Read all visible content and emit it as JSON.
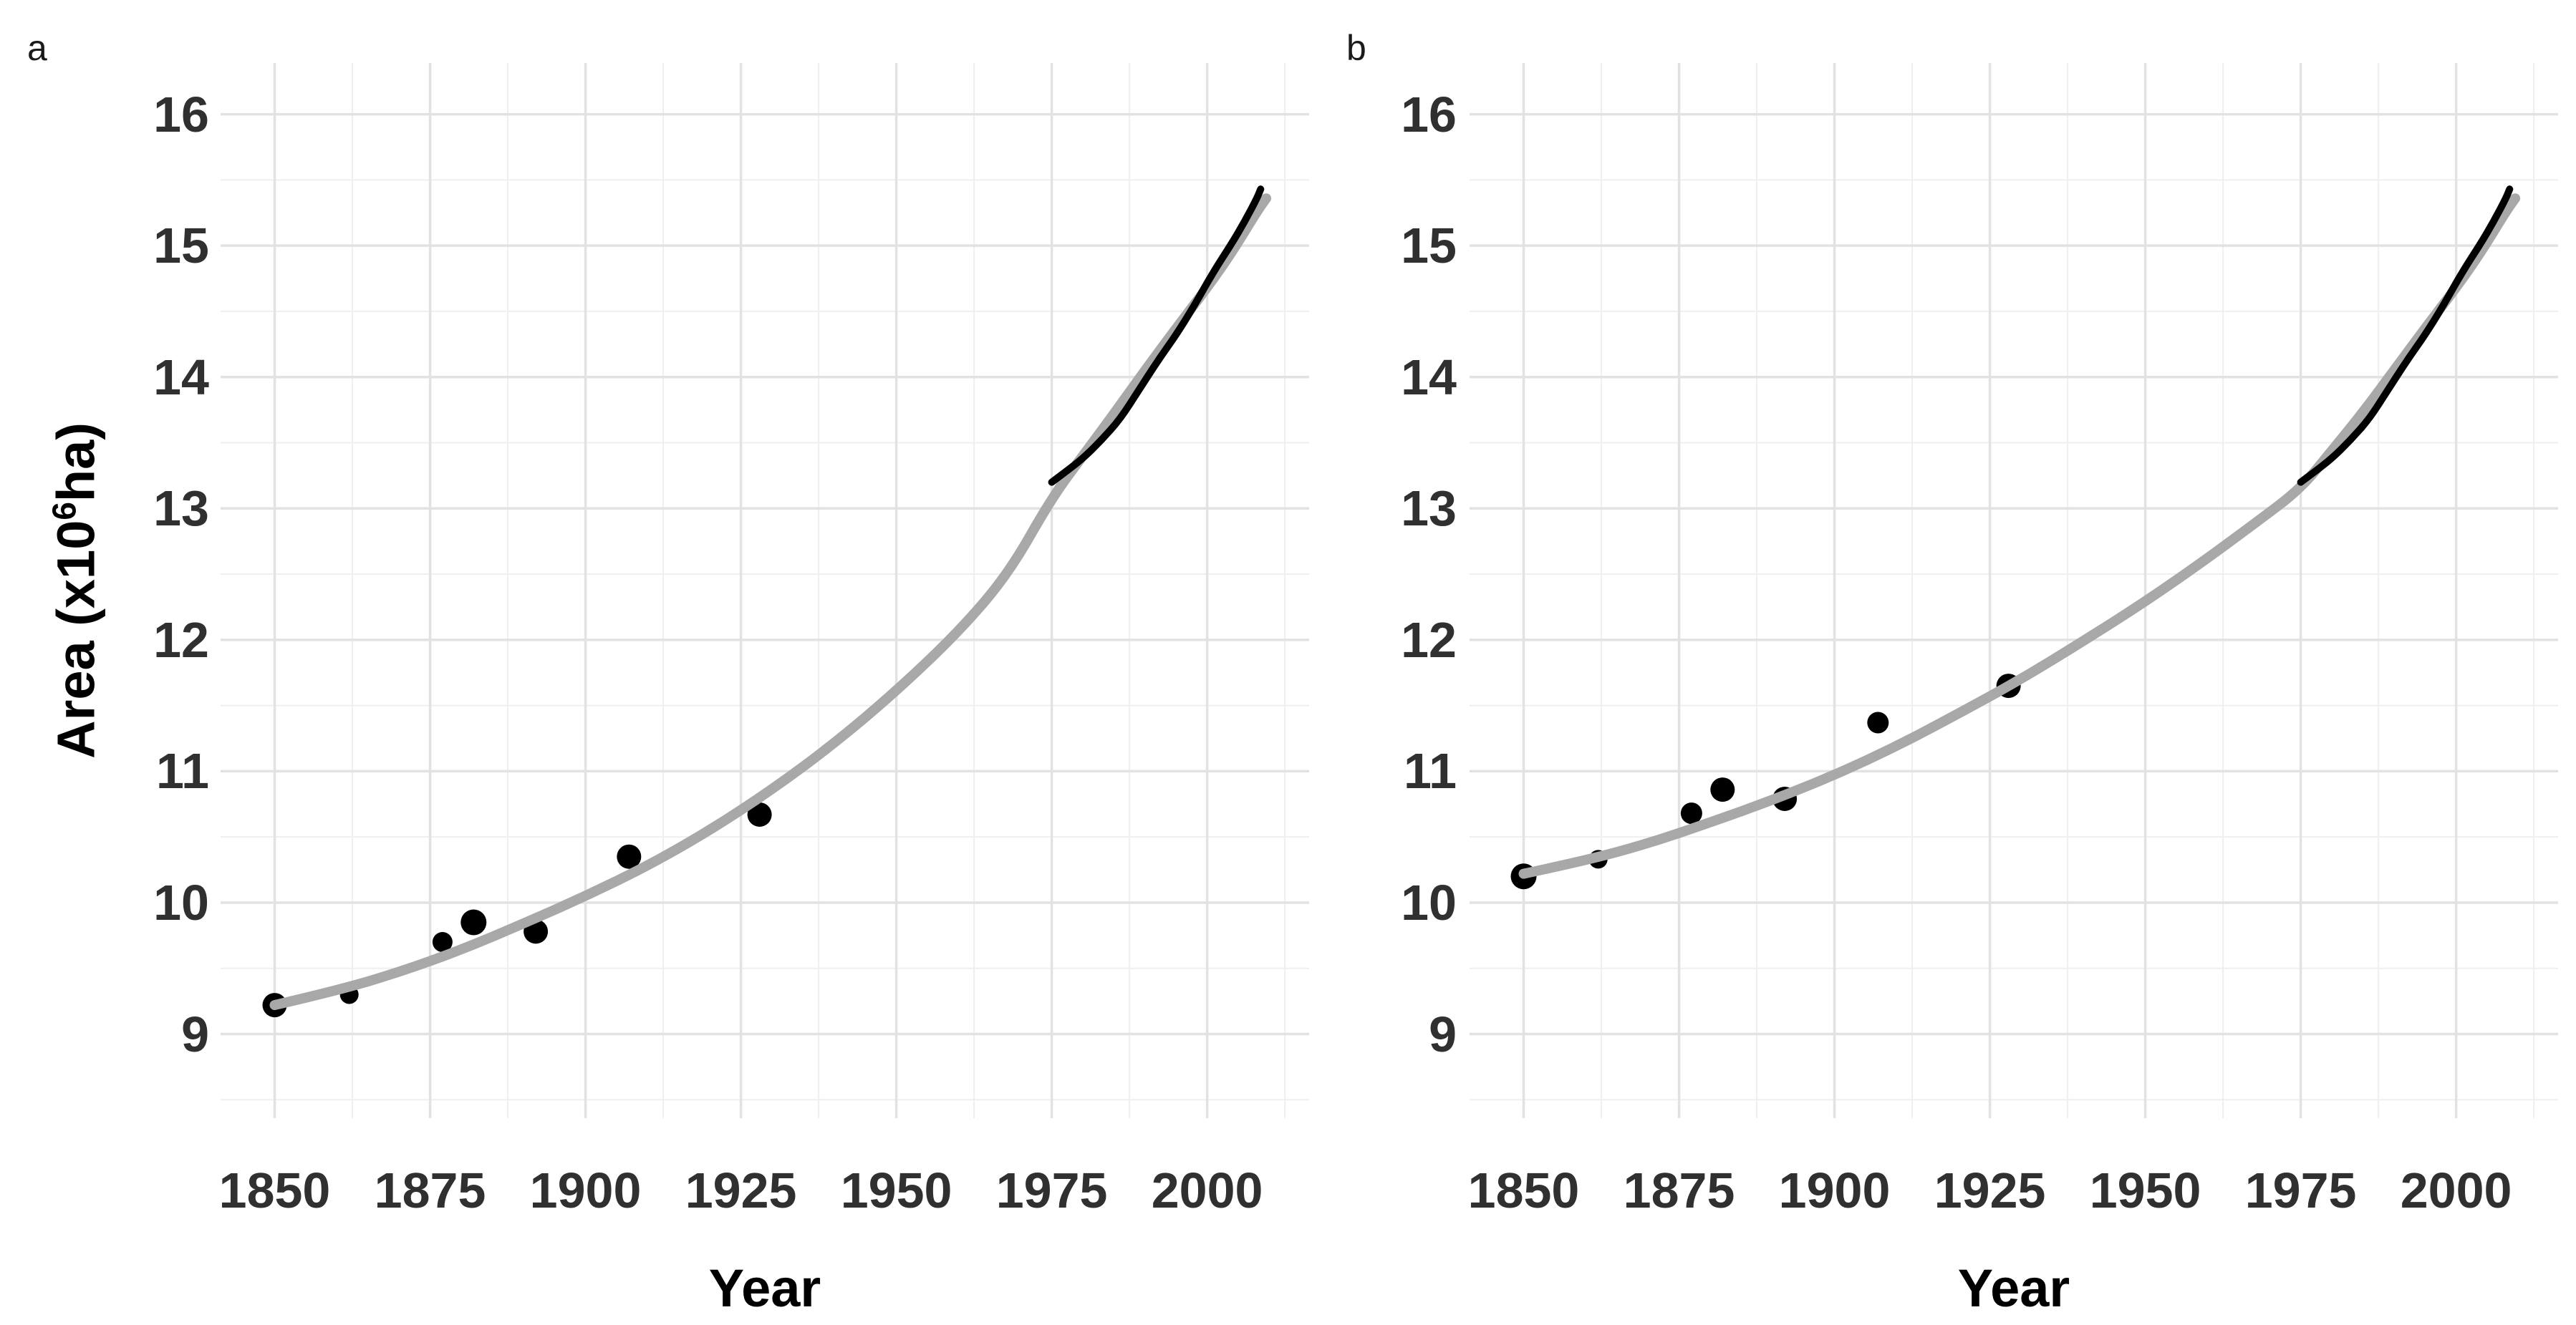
{
  "figure": {
    "panel_tags": [
      "a",
      "b"
    ]
  },
  "chart_data": {
    "type": "scatter",
    "title": "",
    "xlabel": "Year",
    "ylabel": "Area (x10^6 ha)",
    "ylabel_parts": [
      "Area (x10",
      "6",
      "ha)"
    ],
    "axes": {
      "x_domain": [
        1841.3,
        2016.4
      ],
      "y_domain": [
        8.36,
        16.39
      ],
      "x_ticks": [
        1850,
        1875,
        1900,
        1925,
        1950,
        1975,
        2000
      ],
      "x_minor_ticks": [
        1862.5,
        1887.5,
        1912.5,
        1937.5,
        1962.5,
        1987.5,
        2012.5
      ],
      "y_ticks": [
        9,
        10,
        11,
        12,
        13,
        14,
        15,
        16
      ],
      "y_minor_ticks": [
        8.5,
        9.5,
        10.5,
        11.5,
        12.5,
        13.5,
        14.5,
        15.5
      ],
      "grid": true,
      "legend": false
    },
    "panels": [
      {
        "tag": "a",
        "has_y_axis_title": true,
        "points": [
          [
            1850,
            9.22,
            17
          ],
          [
            1862,
            9.3,
            13
          ],
          [
            1877,
            9.7,
            14
          ],
          [
            1882,
            9.85,
            18
          ],
          [
            1892,
            9.78,
            17
          ],
          [
            1907,
            10.35,
            17
          ],
          [
            1928,
            10.67,
            17
          ]
        ],
        "smooth": [
          [
            1850,
            9.22
          ],
          [
            1860,
            9.33
          ],
          [
            1870,
            9.47
          ],
          [
            1880,
            9.64
          ],
          [
            1890,
            9.84
          ],
          [
            1900,
            10.05
          ],
          [
            1910,
            10.28
          ],
          [
            1920,
            10.55
          ],
          [
            1930,
            10.86
          ],
          [
            1940,
            11.21
          ],
          [
            1950,
            11.61
          ],
          [
            1960,
            12.06
          ],
          [
            1968,
            12.5
          ],
          [
            1975,
            13.08
          ],
          [
            1980,
            13.4
          ],
          [
            1985,
            13.72
          ],
          [
            1990,
            14.05
          ],
          [
            1995,
            14.37
          ],
          [
            2000,
            14.68
          ],
          [
            2004,
            14.95
          ],
          [
            2008,
            15.26
          ],
          [
            2009.5,
            15.36
          ]
        ]
      },
      {
        "tag": "b",
        "has_y_axis_title": false,
        "points": [
          [
            1850,
            10.2,
            18
          ],
          [
            1862,
            10.33,
            13
          ],
          [
            1877,
            10.68,
            15
          ],
          [
            1882,
            10.86,
            17
          ],
          [
            1892,
            10.79,
            17
          ],
          [
            1907,
            11.37,
            15
          ],
          [
            1928,
            11.65,
            17
          ]
        ],
        "smooth": [
          [
            1850,
            10.22
          ],
          [
            1860,
            10.32
          ],
          [
            1870,
            10.45
          ],
          [
            1880,
            10.61
          ],
          [
            1890,
            10.78
          ],
          [
            1900,
            10.97
          ],
          [
            1910,
            11.19
          ],
          [
            1920,
            11.44
          ],
          [
            1930,
            11.7
          ],
          [
            1940,
            11.99
          ],
          [
            1950,
            12.29
          ],
          [
            1960,
            12.62
          ],
          [
            1968,
            12.9
          ],
          [
            1975,
            13.15
          ],
          [
            1980,
            13.44
          ],
          [
            1985,
            13.73
          ],
          [
            1990,
            14.05
          ],
          [
            1995,
            14.37
          ],
          [
            2000,
            14.68
          ],
          [
            2004,
            14.95
          ],
          [
            2008,
            15.26
          ],
          [
            2009.5,
            15.36
          ]
        ]
      }
    ],
    "observed_line": [
      [
        1975,
        13.2
      ],
      [
        1977,
        13.27
      ],
      [
        1980,
        13.38
      ],
      [
        1983,
        13.52
      ],
      [
        1986,
        13.68
      ],
      [
        1989,
        13.9
      ],
      [
        1992,
        14.12
      ],
      [
        1995,
        14.32
      ],
      [
        1998,
        14.55
      ],
      [
        2001,
        14.8
      ],
      [
        2004,
        15.02
      ],
      [
        2006,
        15.18
      ],
      [
        2008,
        15.36
      ],
      [
        2008.6,
        15.43
      ]
    ]
  },
  "colors": {
    "background": "#FFFFFF",
    "point": "#000000",
    "smooth_line": "#A8A8A8",
    "observed_line": "#000000",
    "grid_major": "#E2E2E2",
    "grid_minor": "#EFEFEF",
    "tick_label": "#303030",
    "axis_title": "#000000",
    "panel_tag": "#1A1A1A"
  }
}
